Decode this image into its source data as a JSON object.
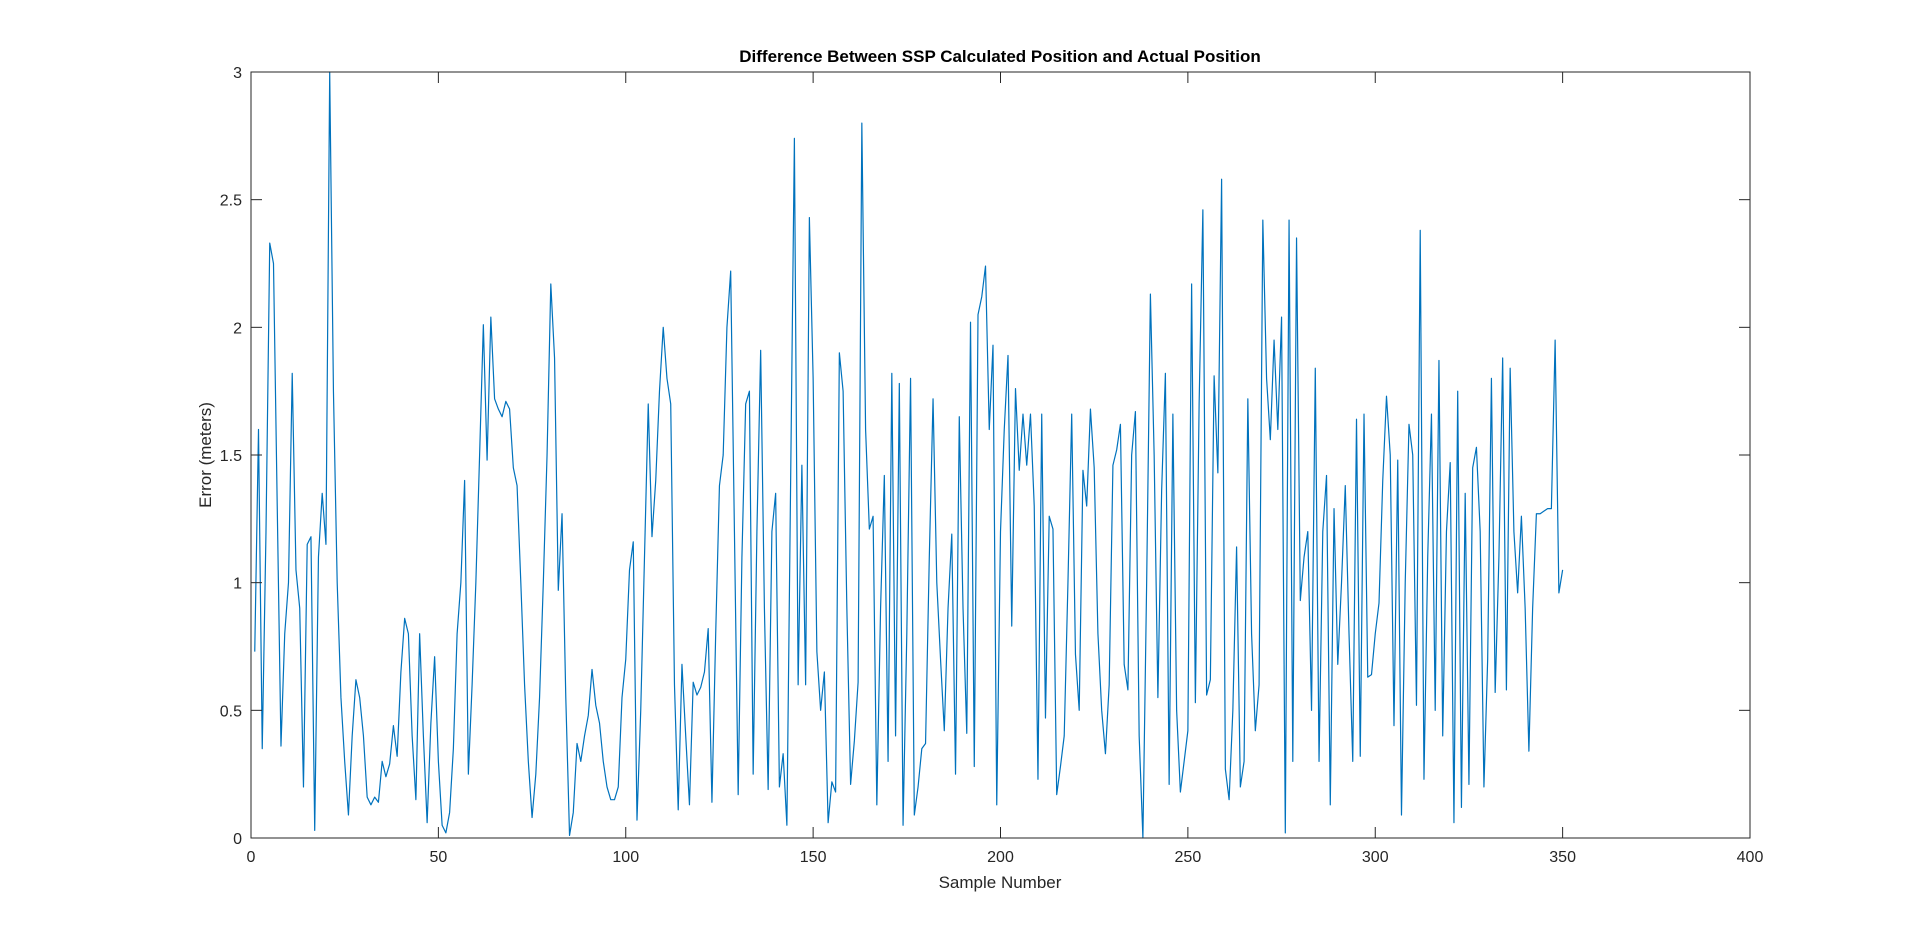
{
  "chart_data": {
    "type": "line",
    "title": "Difference Between SSP Calculated Position and Actual Position",
    "xlabel": "Sample Number",
    "ylabel": "Error (meters)",
    "xlim": [
      0,
      400
    ],
    "ylim": [
      0,
      3
    ],
    "xticks": [
      0,
      50,
      100,
      150,
      200,
      250,
      300,
      350,
      400
    ],
    "xtick_labels": [
      "0",
      "50",
      "100",
      "150",
      "200",
      "250",
      "300",
      "350",
      "400"
    ],
    "yticks": [
      0,
      0.5,
      1,
      1.5,
      2,
      2.5,
      3
    ],
    "ytick_labels": [
      "0",
      "0.5",
      "1",
      "1.5",
      "2",
      "2.5",
      "3"
    ],
    "grid": false,
    "legend": "none",
    "colors": {
      "line": "#0072BD",
      "axes": "#262626",
      "background": "#ffffff"
    },
    "series": [
      {
        "x_start": 1,
        "x_step": 1,
        "values": [
          0.73,
          1.6,
          0.35,
          1.2,
          2.33,
          2.25,
          1.3,
          0.36,
          0.8,
          1.0,
          1.82,
          1.05,
          0.9,
          0.2,
          1.15,
          1.18,
          0.03,
          1.1,
          1.35,
          1.15,
          3.0,
          1.75,
          1.0,
          0.55,
          0.3,
          0.09,
          0.4,
          0.62,
          0.55,
          0.4,
          0.16,
          0.13,
          0.16,
          0.14,
          0.3,
          0.24,
          0.29,
          0.44,
          0.32,
          0.65,
          0.86,
          0.8,
          0.4,
          0.15,
          0.8,
          0.4,
          0.06,
          0.45,
          0.71,
          0.3,
          0.05,
          0.02,
          0.1,
          0.35,
          0.8,
          1.0,
          1.4,
          0.25,
          0.6,
          1.0,
          1.5,
          2.01,
          1.48,
          2.04,
          1.72,
          1.68,
          1.65,
          1.71,
          1.68,
          1.45,
          1.38,
          1.0,
          0.6,
          0.3,
          0.08,
          0.25,
          0.55,
          1.0,
          1.5,
          2.17,
          1.88,
          0.97,
          1.27,
          0.55,
          0.01,
          0.1,
          0.37,
          0.3,
          0.4,
          0.48,
          0.66,
          0.52,
          0.45,
          0.3,
          0.2,
          0.15,
          0.15,
          0.2,
          0.55,
          0.7,
          1.05,
          1.16,
          0.07,
          0.5,
          1.1,
          1.7,
          1.18,
          1.4,
          1.75,
          2.0,
          1.8,
          1.7,
          0.6,
          0.11,
          0.68,
          0.4,
          0.13,
          0.61,
          0.56,
          0.59,
          0.65,
          0.82,
          0.14,
          0.8,
          1.38,
          1.5,
          2.0,
          2.22,
          1.2,
          0.17,
          1.1,
          1.7,
          1.75,
          0.25,
          1.2,
          1.91,
          0.9,
          0.19,
          1.2,
          1.35,
          0.2,
          0.33,
          0.05,
          1.4,
          2.74,
          0.6,
          1.46,
          0.6,
          2.43,
          1.8,
          0.73,
          0.5,
          0.65,
          0.06,
          0.22,
          0.18,
          1.9,
          1.75,
          0.9,
          0.21,
          0.38,
          0.61,
          2.8,
          1.6,
          1.21,
          1.26,
          0.13,
          0.9,
          1.42,
          0.3,
          1.82,
          0.4,
          1.78,
          0.05,
          0.8,
          1.8,
          0.09,
          0.2,
          0.35,
          0.37,
          1.1,
          1.72,
          1.0,
          0.7,
          0.42,
          0.9,
          1.19,
          0.25,
          1.65,
          0.9,
          0.41,
          2.02,
          0.28,
          2.05,
          2.12,
          2.24,
          1.6,
          1.93,
          0.13,
          1.2,
          1.6,
          1.89,
          0.83,
          1.76,
          1.44,
          1.66,
          1.46,
          1.66,
          1.3,
          0.23,
          1.66,
          0.47,
          1.26,
          1.21,
          0.17,
          0.28,
          0.4,
          1.0,
          1.66,
          0.72,
          0.5,
          1.44,
          1.3,
          1.68,
          1.45,
          0.8,
          0.5,
          0.33,
          0.6,
          1.46,
          1.52,
          1.62,
          0.68,
          0.58,
          1.5,
          1.67,
          0.4,
          0.0,
          1.0,
          2.13,
          1.5,
          0.55,
          1.36,
          1.82,
          0.21,
          1.66,
          0.5,
          0.18,
          0.3,
          0.42,
          2.17,
          0.53,
          1.7,
          2.46,
          0.56,
          0.62,
          1.81,
          1.43,
          2.58,
          0.27,
          0.15,
          0.5,
          1.14,
          0.2,
          0.3,
          1.72,
          0.8,
          0.42,
          0.6,
          2.42,
          1.8,
          1.56,
          1.95,
          1.6,
          2.04,
          0.02,
          2.42,
          0.3,
          2.35,
          0.93,
          1.1,
          1.2,
          0.5,
          1.84,
          0.3,
          1.2,
          1.42,
          0.13,
          1.29,
          0.68,
          1.0,
          1.38,
          0.8,
          0.3,
          1.64,
          0.32,
          1.66,
          0.63,
          0.64,
          0.8,
          0.92,
          1.4,
          1.73,
          1.5,
          0.44,
          1.48,
          0.09,
          1.0,
          1.62,
          1.5,
          0.52,
          2.38,
          0.23,
          1.1,
          1.66,
          0.5,
          1.87,
          0.4,
          1.2,
          1.47,
          0.06,
          1.75,
          0.12,
          1.35,
          0.21,
          1.45,
          1.53,
          1.2,
          0.2,
          0.7,
          1.8,
          0.57,
          1.1,
          1.88,
          0.58,
          1.84,
          1.2,
          0.96,
          1.26,
          0.9,
          0.34,
          0.9,
          1.27,
          1.27,
          1.28,
          1.29,
          1.29,
          1.95,
          0.96,
          1.05
        ]
      }
    ]
  }
}
